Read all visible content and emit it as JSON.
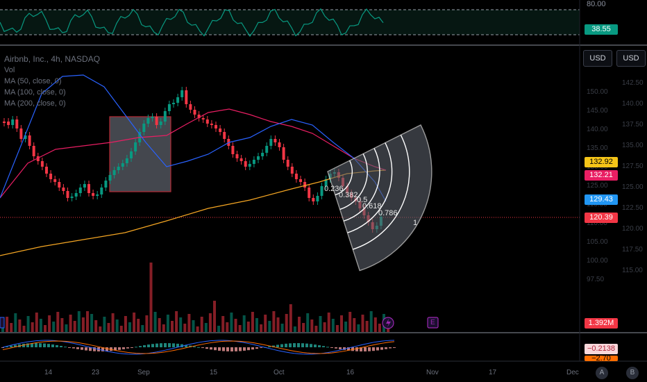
{
  "symbol": {
    "name": "Airbnb, Inc.",
    "timeframe": "4h",
    "exchange": "NASDAQ",
    "line": "Airbnb, Inc., 4h, NASDAQ"
  },
  "indicators": [
    {
      "label": "Vol"
    },
    {
      "label": "MA (50, close, 0)"
    },
    {
      "label": "MA (100, close, 0)"
    },
    {
      "label": "MA (200, close, 0)"
    }
  ],
  "currency_buttons": [
    "USD",
    "USD"
  ],
  "price_tags": [
    {
      "value": "132.92",
      "color": "#f5c518",
      "text_color": "#000000"
    },
    {
      "value": "132.21",
      "color": "#e91e63",
      "text_color": "#ffffff"
    },
    {
      "value": "129.43",
      "color": "#2196f3",
      "text_color": "#ffffff"
    },
    {
      "value": "120.39",
      "color": "#f23645",
      "text_color": "#ffffff"
    }
  ],
  "rsi": {
    "top_label": "80.00",
    "value": "38.55",
    "color": "#089981"
  },
  "volume_tag": {
    "value": "1.392M",
    "color": "#f23645"
  },
  "macd_tags": [
    {
      "value": "−0.2138",
      "color": "#f8d7da",
      "text_color": "#b0243a"
    },
    {
      "value": "−2.70",
      "color": "#ff6d00",
      "text_color": "#000000"
    }
  ],
  "price_scale_left": [
    "150.00",
    "145.00",
    "140.00",
    "135.00",
    "130.00",
    "125.00",
    "115.00",
    "110.00",
    "105.00",
    "100.00",
    "97.50"
  ],
  "price_scale_right": [
    "142.50",
    "140.00",
    "137.50",
    "135.00",
    "127.50",
    "125.00",
    "122.50",
    "120.00",
    "117.50",
    "115.00"
  ],
  "fib_labels": [
    "0.236",
    "0.382",
    "0.5",
    "0.618",
    "0.786",
    "1"
  ],
  "x_axis": [
    "14",
    "23",
    "Sep",
    "15",
    "Oct",
    "16",
    "Nov",
    "17",
    "Dec"
  ],
  "bottom_buttons": [
    "A",
    "B"
  ],
  "event_markers": {
    "dividend": "E"
  },
  "colors": {
    "up": "#089981",
    "down": "#f23645",
    "ma50": "#2962ff",
    "ma100": "#e91e63",
    "ma200": "#f5a623"
  }
}
